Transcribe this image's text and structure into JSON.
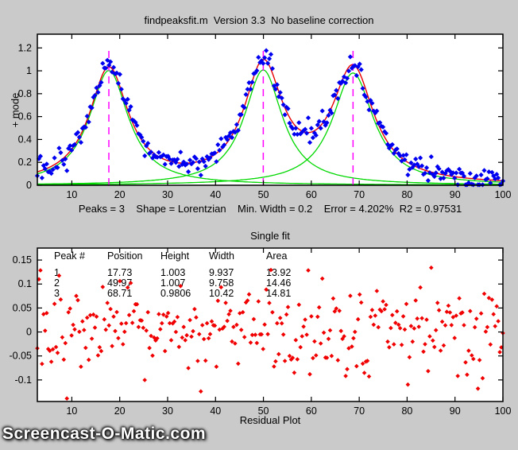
{
  "header": {
    "title": "findpeaksfit.m  Version 3.3  No baseline correction"
  },
  "watermark": {
    "text": "Screencast-O-Matic.com"
  },
  "colors": {
    "background": "#cacaca",
    "plot_bg": "#ffffff",
    "axis": "#000000",
    "data_points": "#0000f0",
    "fit_line": "#e80000",
    "component_lines": "#00d800",
    "peak_marker_lines": "#ff00ff",
    "residual_points": "#f00000"
  },
  "chart_data": [
    {
      "name": "signal-and-fit",
      "type": "scatter",
      "title": "",
      "xlabel": "Peaks = 3    Shape = Lorentzian    Min. Width = 0.2    Error = 4.202%  R2 = 0.97531",
      "ylabel": "+ mode",
      "xlim": [
        2.8,
        100
      ],
      "ylim": [
        0,
        1.32
      ],
      "xticks": [
        10,
        20,
        30,
        40,
        50,
        60,
        70,
        80,
        90,
        100
      ],
      "xticklabels": [
        "10",
        "20",
        "30",
        "40",
        "50",
        "60",
        "70",
        "80",
        "90",
        "100"
      ],
      "yticks": [
        0,
        0.2,
        0.4,
        0.6,
        0.8,
        1,
        1.2
      ],
      "yticklabels": [
        "0",
        "0.2",
        "0.4",
        "0.6",
        "0.8",
        "1",
        "1.2"
      ],
      "grid": false,
      "model": "lorentzian",
      "peaks": [
        {
          "peak": 1,
          "position": 17.73,
          "height": 1.003,
          "width": 9.937,
          "area": 13.92
        },
        {
          "peak": 2,
          "position": 49.97,
          "height": 1.007,
          "width": 9.758,
          "area": 14.46
        },
        {
          "peak": 3,
          "position": 68.71,
          "height": 0.9806,
          "width": 10.42,
          "area": 14.81
        }
      ],
      "peak_marker_top": 1.2,
      "n_points": 300,
      "noise_std": 0.05,
      "seed": 13,
      "series": [
        {
          "name": "measured data",
          "style": "blue filled diamonds"
        },
        {
          "name": "total fit",
          "style": "red solid line"
        },
        {
          "name": "peak components",
          "style": "green solid lines"
        },
        {
          "name": "peak positions",
          "style": "magenta dashed vertical lines"
        }
      ]
    },
    {
      "name": "residuals",
      "type": "scatter",
      "title": "Single fit",
      "xlabel": "Residual Plot",
      "ylabel": "",
      "xlim": [
        2.8,
        100
      ],
      "ylim": [
        -0.145,
        0.175
      ],
      "xticks": [
        10,
        20,
        30,
        40,
        50,
        60,
        70,
        80,
        90,
        100
      ],
      "xticklabels": [
        "10",
        "20",
        "30",
        "40",
        "50",
        "60",
        "70",
        "80",
        "90",
        "100"
      ],
      "yticks": [
        0.15,
        0.1,
        0.05,
        0,
        -0.05,
        -0.1
      ],
      "yticklabels": [
        "0.15",
        "0.1",
        "0.05",
        "0",
        "-0.05",
        "-0.1"
      ],
      "grid": false,
      "series": [
        {
          "name": "residuals",
          "style": "red filled diamonds"
        }
      ],
      "table": {
        "headers": [
          "Peak #",
          "Position",
          "Height",
          "Width",
          "Area"
        ],
        "rows": [
          [
            "1",
            "17.73",
            "1.003",
            "9.937",
            "13.92"
          ],
          [
            "2",
            "49.97",
            "1.007",
            "9.758",
            "14.46"
          ],
          [
            "3",
            "68.71",
            "0.9806",
            "10.42",
            "14.81"
          ]
        ]
      }
    }
  ]
}
